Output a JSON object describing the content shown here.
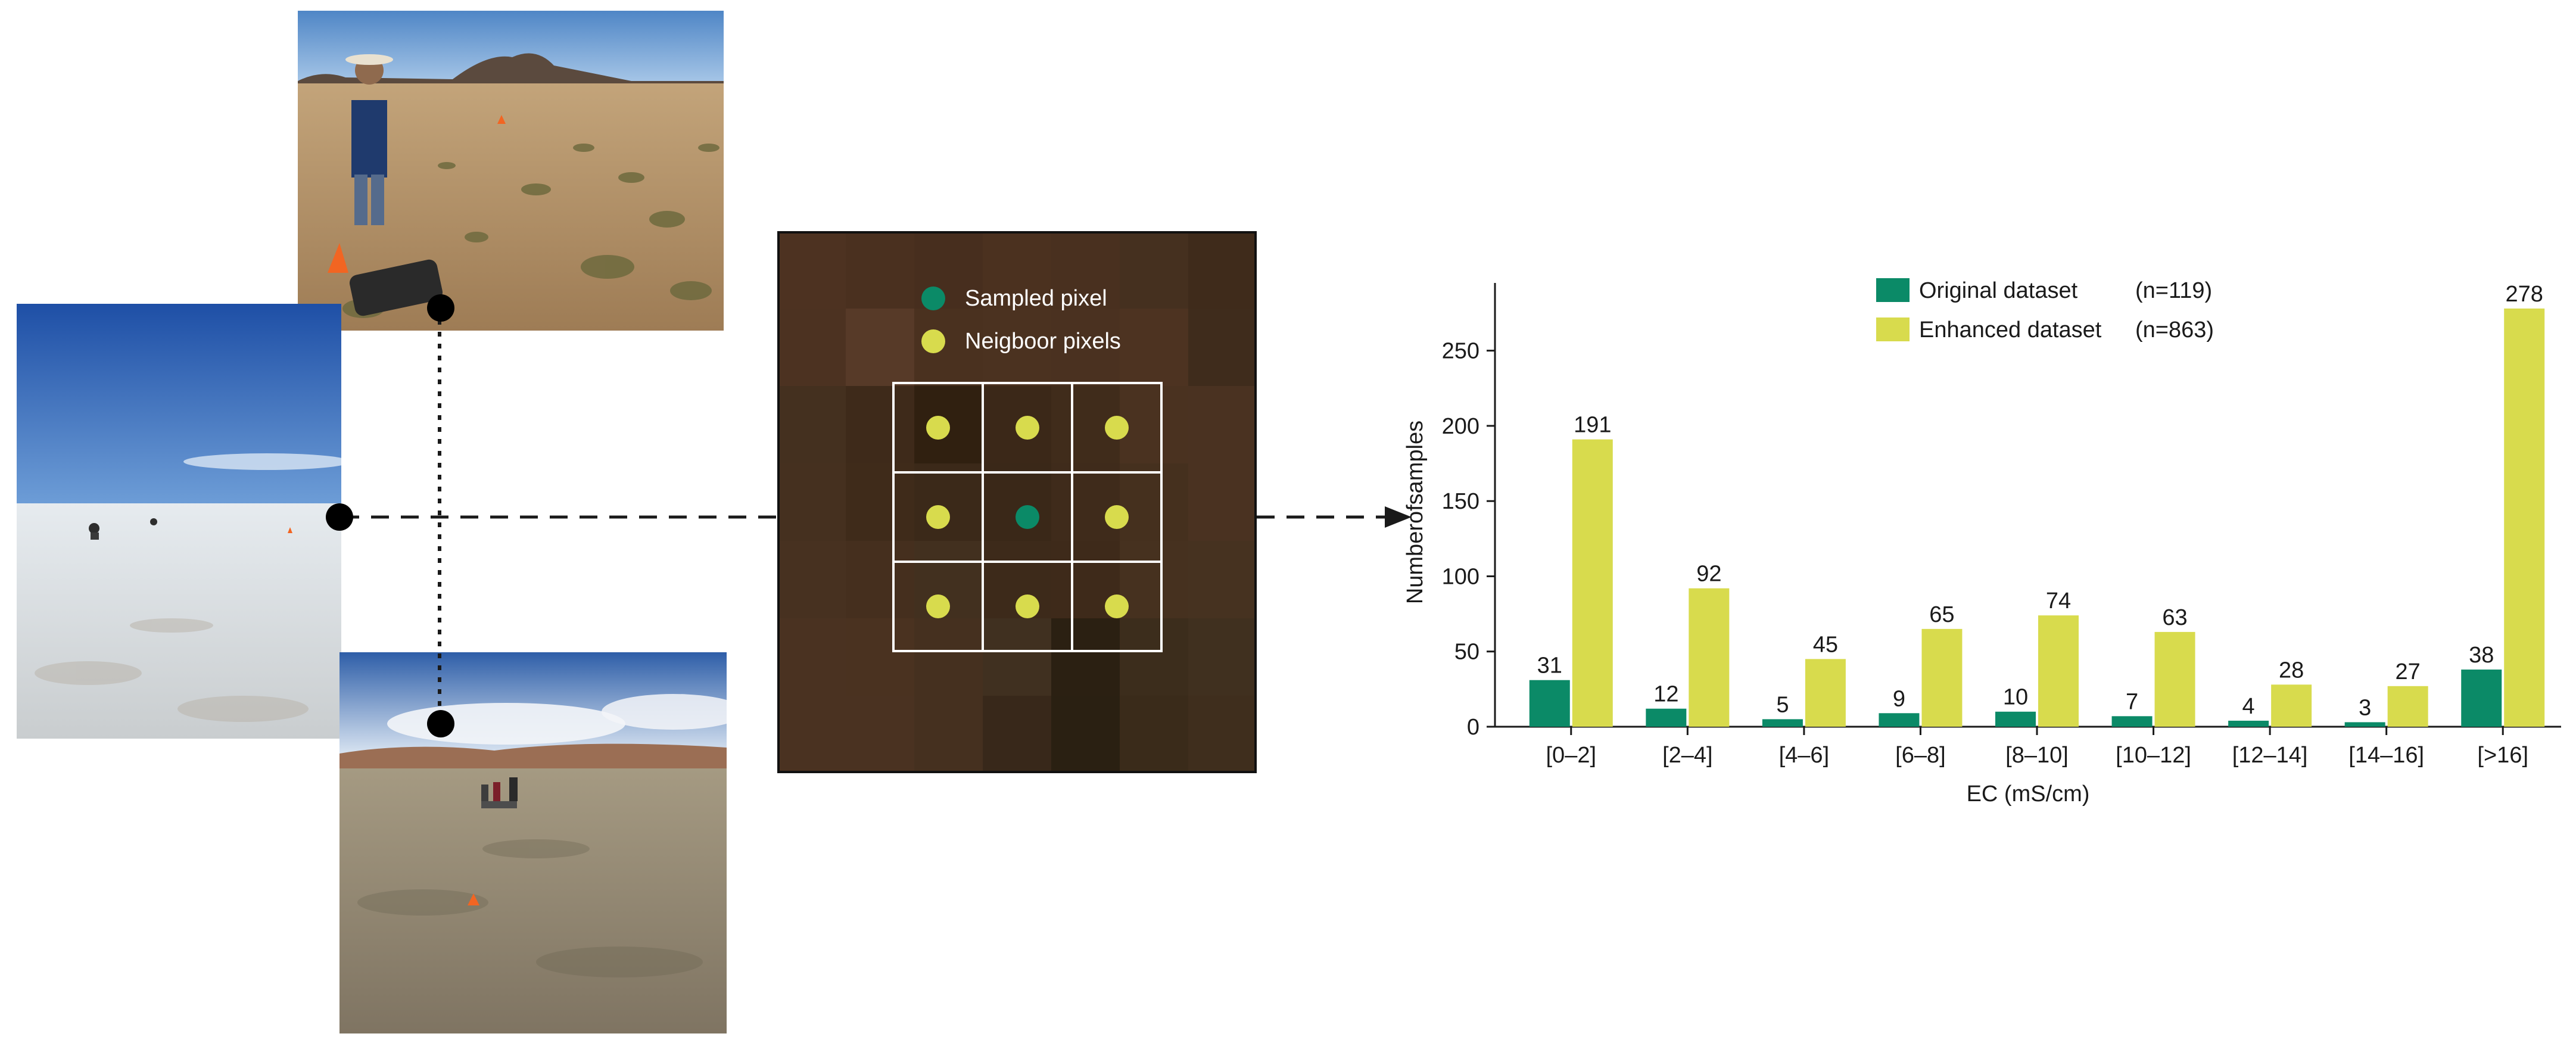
{
  "raster_legend": {
    "sampled_label": "Sampled pixel",
    "neighbor_label": "Neigboor pixels",
    "sampled_color": "#0b8a67",
    "neighbor_color": "#d8db4d"
  },
  "chart_legend": {
    "original_label": "Original dataset",
    "original_n": "(n=119)",
    "enhanced_label": "Enhanced dataset",
    "enhanced_n": "(n=863)"
  },
  "chart_data": {
    "type": "bar",
    "categories": [
      "[0–2]",
      "[2–4]",
      "[4–6]",
      "[6–8]",
      "[8–10]",
      "[10–12]",
      "[12–14]",
      "[14–16]",
      "[>16]"
    ],
    "series": [
      {
        "name": "Original dataset",
        "color": "#0b8a67",
        "values": [
          31,
          12,
          5,
          9,
          10,
          7,
          4,
          3,
          38
        ]
      },
      {
        "name": "Enhanced dataset",
        "color": "#d8db4d",
        "values": [
          191,
          92,
          45,
          65,
          74,
          63,
          28,
          27,
          278
        ]
      }
    ],
    "xlabel": "EC (mS/cm)",
    "ylabel": "Numberofsamples",
    "ylim": [
      0,
      295
    ],
    "yticks": [
      0,
      50,
      100,
      150,
      200,
      250
    ],
    "grid": false,
    "legend": "top-center"
  }
}
